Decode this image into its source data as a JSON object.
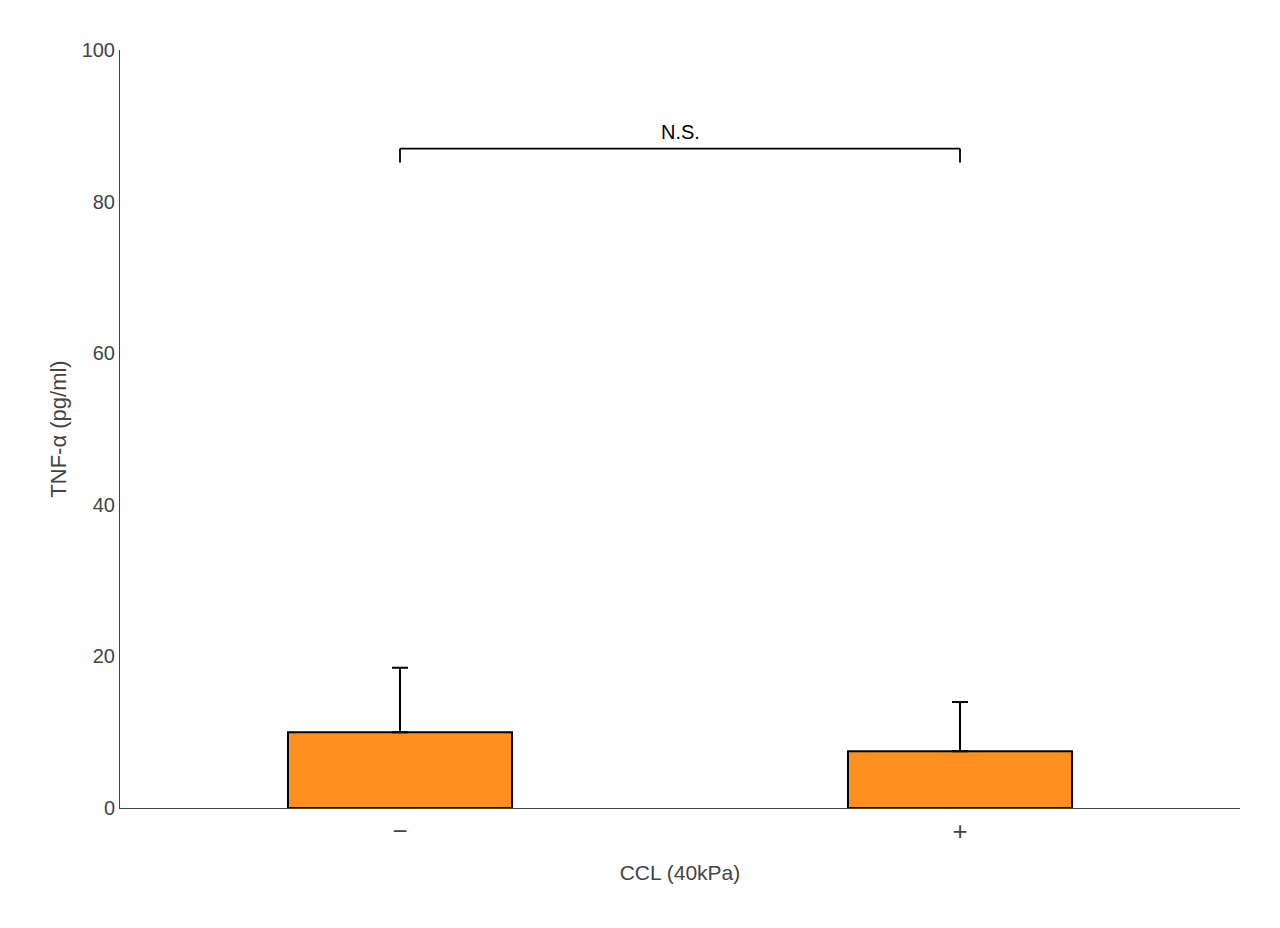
{
  "chart_data": {
    "type": "bar",
    "categories": [
      "−",
      "+"
    ],
    "values": [
      10.0,
      7.5
    ],
    "errors": [
      8.5,
      6.5
    ],
    "color": "#FF9020",
    "ylabel": "TNF-α (pg/ml)",
    "xlabel": "CCL (40kPa)",
    "ylim": [
      0,
      100
    ],
    "yticks": [
      0,
      20,
      40,
      60,
      80,
      100
    ],
    "grid": false,
    "annotations": [
      {
        "text": "N.S.",
        "x0": "−",
        "x1": "+",
        "y": 87
      }
    ]
  }
}
